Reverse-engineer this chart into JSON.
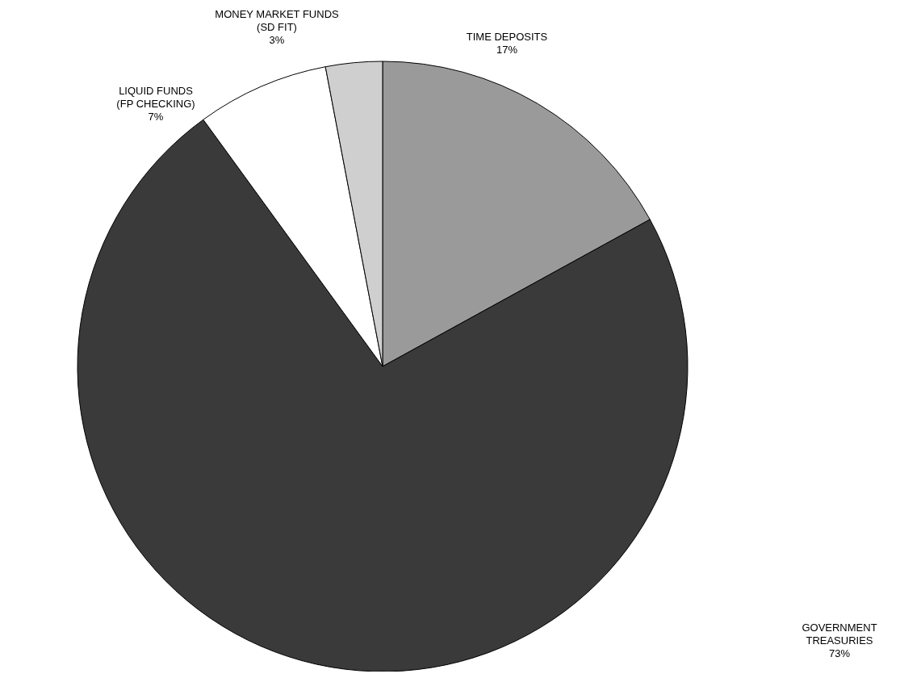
{
  "chart_data": {
    "type": "pie",
    "categories": [
      "TIME DEPOSITS",
      "GOVERNMENT\nTREASURIES",
      "LIQUID FUNDS\n(FP CHECKING)",
      "MONEY MARKET FUNDS\n(SD FIT)"
    ],
    "values": [
      17,
      73,
      7,
      3
    ],
    "colors": [
      "#9a9a9a",
      "#3a3a3a",
      "#ffffff",
      "#cfcfcf"
    ],
    "value_labels": [
      "17%",
      "73%",
      "7%",
      "3%"
    ]
  }
}
